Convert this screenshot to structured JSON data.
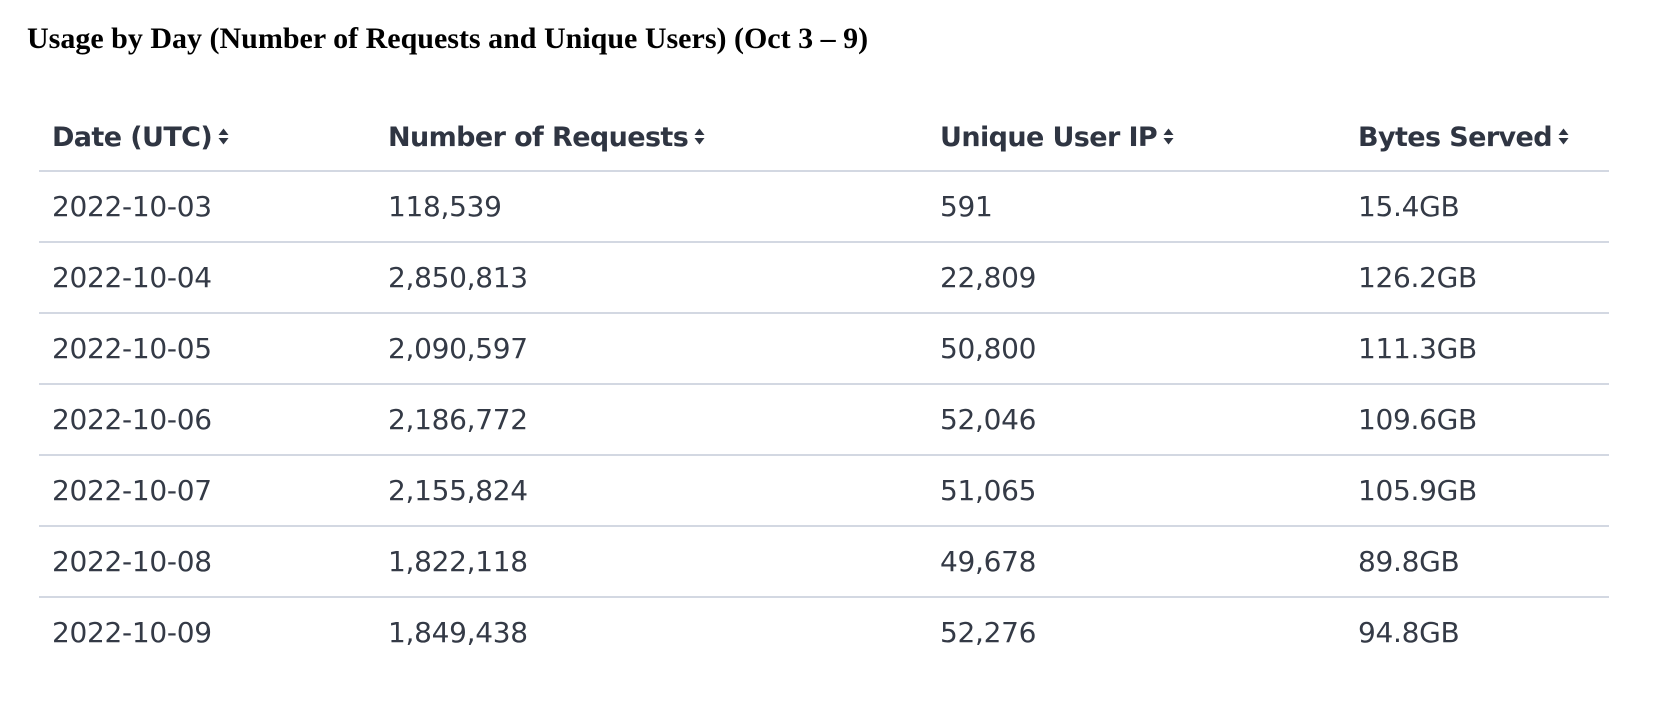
{
  "page": {
    "title": "Usage by Day (Number of Requests and Unique Users) (Oct 3 – 9)"
  },
  "table": {
    "columns": [
      {
        "label": "Date (UTC)",
        "sort_icon": "sort-up-down-icon"
      },
      {
        "label": "Number of Requests",
        "sort_icon": "sort-up-down-icon"
      },
      {
        "label": "Unique User IP",
        "sort_icon": "sort-up-down-icon"
      },
      {
        "label": "Bytes Served",
        "sort_icon": "sort-up-down-icon"
      }
    ],
    "rows": [
      {
        "date": "2022-10-03",
        "requests": "118,539",
        "unique_ips": "591",
        "bytes": "15.4GB"
      },
      {
        "date": "2022-10-04",
        "requests": "2,850,813",
        "unique_ips": "22,809",
        "bytes": "126.2GB"
      },
      {
        "date": "2022-10-05",
        "requests": "2,090,597",
        "unique_ips": "50,800",
        "bytes": "111.3GB"
      },
      {
        "date": "2022-10-06",
        "requests": "2,186,772",
        "unique_ips": "52,046",
        "bytes": "109.6GB"
      },
      {
        "date": "2022-10-07",
        "requests": "2,155,824",
        "unique_ips": "51,065",
        "bytes": "105.9GB"
      },
      {
        "date": "2022-10-08",
        "requests": "1,822,118",
        "unique_ips": "49,678",
        "bytes": "89.8GB"
      },
      {
        "date": "2022-10-09",
        "requests": "1,849,438",
        "unique_ips": "52,276",
        "bytes": "94.8GB"
      }
    ]
  },
  "colors": {
    "header_text": "#2f3542",
    "cell_text": "#343a46",
    "row_divider": "#d3d8e2"
  }
}
